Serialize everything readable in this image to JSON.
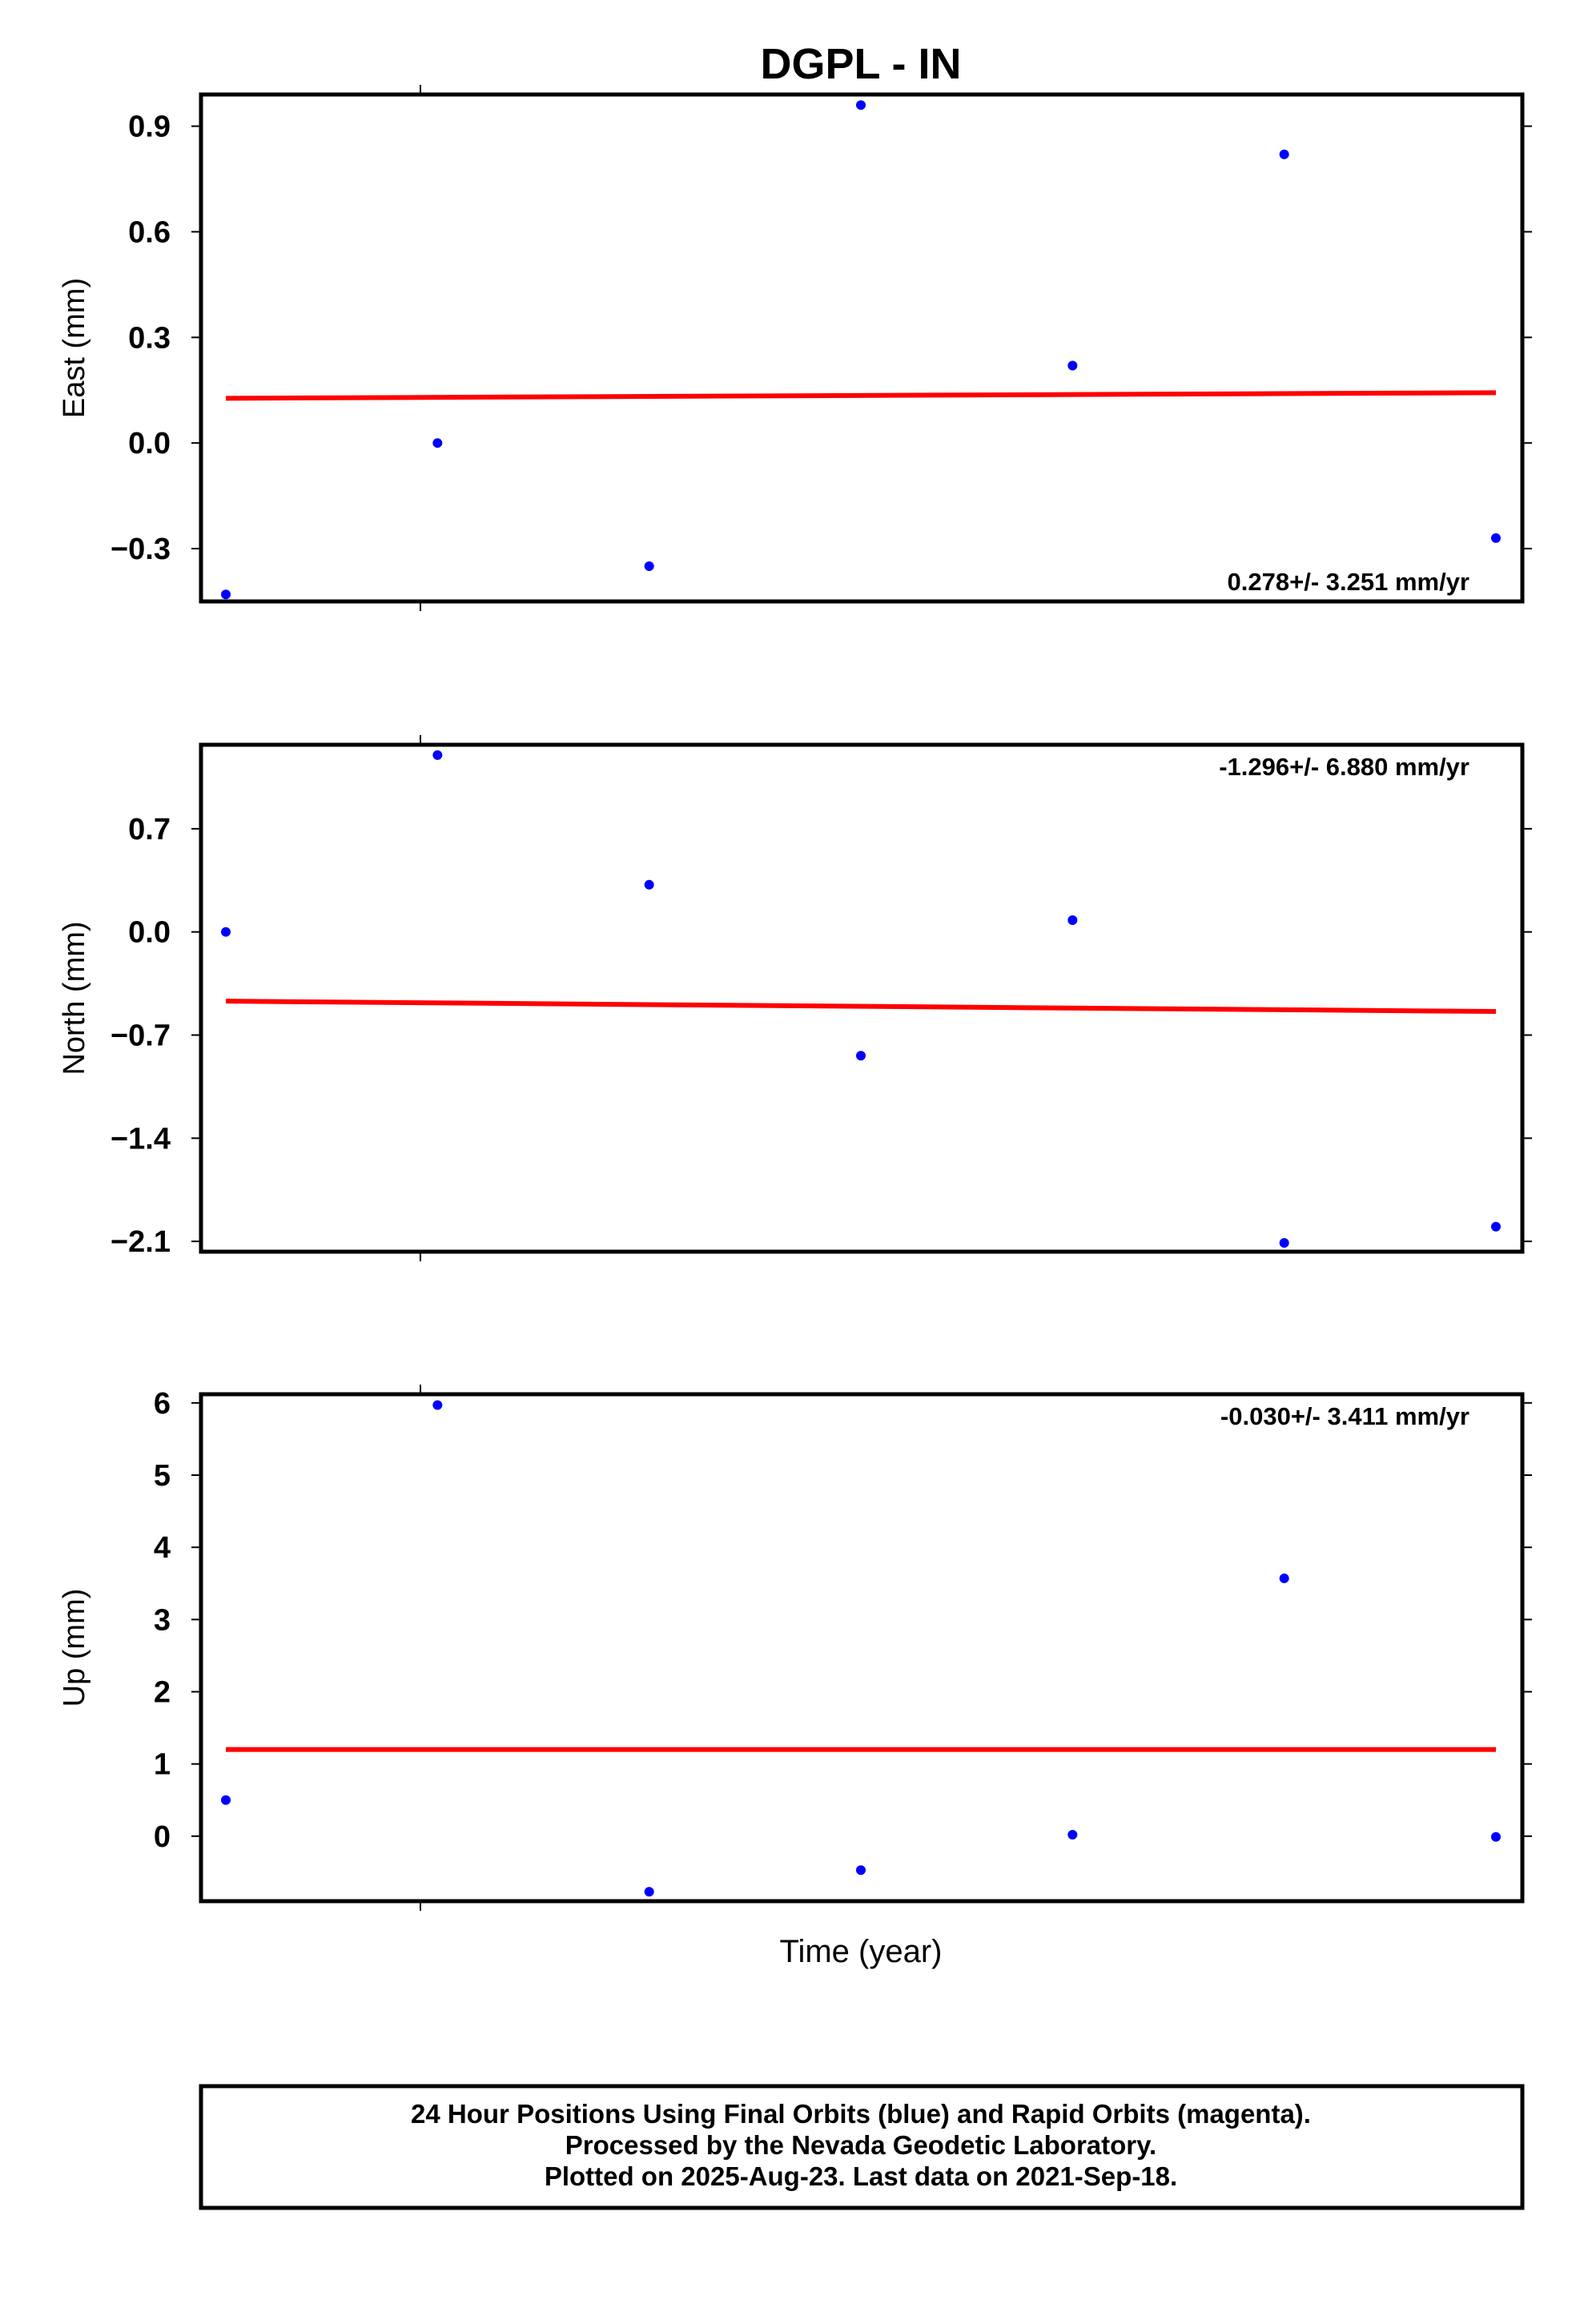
{
  "title": "DGPL - IN",
  "xlabel": "Time (year)",
  "footer": {
    "lines": [
      "24 Hour Positions Using Final Orbits (blue) and Rapid Orbits (magenta).",
      "Processed by the Nevada Geodetic Laboratory.",
      "Plotted on 2025-Aug-23. Last data on 2021-Sep-18."
    ]
  },
  "colors": {
    "points": "#0000ff",
    "trend": "#ff0000",
    "frame": "#000000"
  },
  "chart_data": [
    {
      "type": "scatter",
      "ylabel": "East (mm)",
      "ylim": [
        -0.45,
        0.99
      ],
      "yticks": [
        -0.3,
        0.0,
        0.3,
        0.6,
        0.9
      ],
      "ytick_labels": [
        "−0.3",
        "0.0",
        "0.3",
        "0.6",
        "0.9"
      ],
      "x": [
        0,
        1,
        2,
        3,
        4,
        5,
        6
      ],
      "values": [
        -0.43,
        0.0,
        -0.35,
        0.96,
        0.22,
        0.82,
        -0.27
      ],
      "trend": [
        0.127,
        0.143
      ],
      "rate_text": "0.278+/- 3.251 mm/yr",
      "rate_position": "bottom-right"
    },
    {
      "type": "scatter",
      "ylabel": "North (mm)",
      "ylim": [
        -2.17,
        1.27
      ],
      "yticks": [
        -2.1,
        -1.4,
        -0.7,
        0.0,
        0.7
      ],
      "ytick_labels": [
        "−2.1",
        "−1.4",
        "−0.7",
        "0.0",
        "0.7"
      ],
      "x": [
        0,
        1,
        2,
        3,
        4,
        5,
        6
      ],
      "values": [
        0.0,
        1.2,
        0.32,
        -0.84,
        0.08,
        -2.11,
        -2.0
      ],
      "trend": [
        -0.47,
        -0.54
      ],
      "rate_text": "-1.296+/- 6.880 mm/yr",
      "rate_position": "top-right"
    },
    {
      "type": "scatter",
      "ylabel": "Up (mm)",
      "ylim": [
        -0.9,
        6.12
      ],
      "yticks": [
        0,
        1,
        2,
        3,
        4,
        5,
        6
      ],
      "ytick_labels": [
        "0",
        "1",
        "2",
        "3",
        "4",
        "5",
        "6"
      ],
      "x": [
        0,
        1,
        2,
        3,
        4,
        5,
        6
      ],
      "values": [
        0.5,
        5.97,
        -0.77,
        -0.47,
        0.02,
        3.57,
        -0.01
      ],
      "trend": [
        1.2,
        1.2
      ],
      "rate_text": "-0.030+/- 3.411 mm/yr",
      "rate_position": "top-right"
    }
  ]
}
